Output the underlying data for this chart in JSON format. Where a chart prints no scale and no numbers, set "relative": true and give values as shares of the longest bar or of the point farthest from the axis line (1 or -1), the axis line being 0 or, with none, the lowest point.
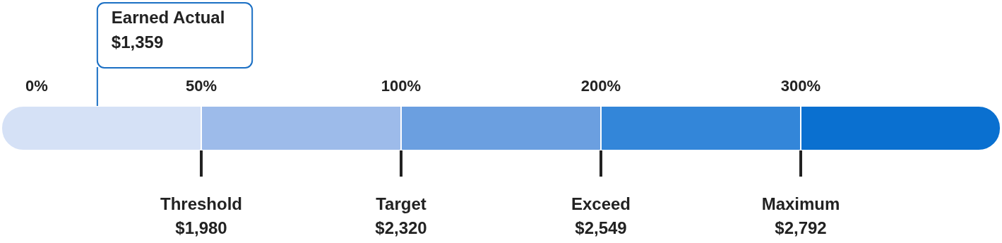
{
  "chart_data": {
    "type": "bar",
    "orientation": "horizontal",
    "stacked": true,
    "relative": true,
    "categories": [
      null
    ],
    "series": [
      {
        "color": "#d5e1f6",
        "values": [
          0.2
        ]
      },
      {
        "color": "#9dbbea",
        "values": [
          0.2
        ]
      },
      {
        "color": "#6b9fe0",
        "values": [
          0.2
        ]
      },
      {
        "color": "#3386d9",
        "values": [
          0.2
        ]
      },
      {
        "color": "#0a70d0",
        "values": [
          0.2
        ]
      }
    ],
    "annotations": [
      "0%",
      "50%",
      "100%",
      "200%",
      "300%"
    ],
    "ref_lines": [
      {
        "axis": "x",
        "value": 0.096,
        "label": "Earned Actual\n$1,359",
        "color": "#1a6fc4"
      },
      {
        "axis": "x",
        "value": 0.2,
        "label": "Threshold\n$1,980",
        "color": "#222222"
      },
      {
        "axis": "x",
        "value": 0.4,
        "label": "Target\n$2,320",
        "color": "#222222"
      },
      {
        "axis": "x",
        "value": 0.6,
        "label": "Exceed\n$2,549",
        "color": "#222222"
      },
      {
        "axis": "x",
        "value": 0.8,
        "label": "Maximum\n$2,792",
        "color": "#222222"
      }
    ]
  }
}
